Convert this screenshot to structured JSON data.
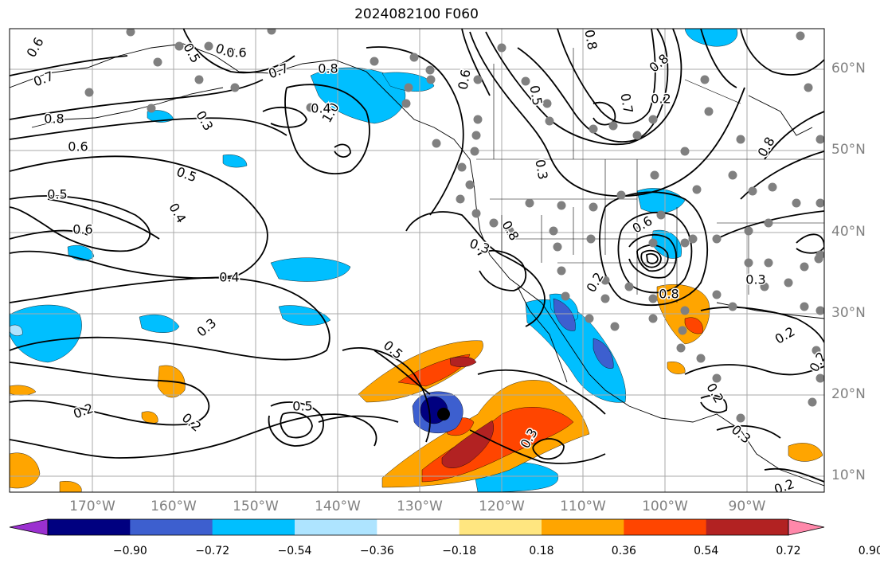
{
  "title": "2024082100 F060",
  "lat_labels": [
    "60°N",
    "50°N",
    "40°N",
    "30°N",
    "20°N",
    "10°N"
  ],
  "lon_labels": [
    "170°W",
    "160°W",
    "150°W",
    "140°W",
    "130°W",
    "120°W",
    "110°W",
    "100°W",
    "90°W"
  ],
  "contour_labels": [
    "0.6",
    "0.7",
    "0.8",
    "0.6",
    "0.5",
    "0.6",
    "0.4",
    "0.5",
    "0.4",
    "0.3",
    "0.2",
    "0.2",
    "0.5",
    "0.5",
    "0.6",
    "0.7",
    "0.8",
    "1.0",
    "0.3",
    "0.4",
    "0.5",
    "0.8",
    "0.7",
    "0.8",
    "0.6",
    "0.3",
    "0.6",
    "0.3",
    "0.8",
    "0.2",
    "0.2",
    "0.8",
    "0.3",
    "0.2",
    "0.2",
    "0.3",
    "0.2",
    "0.2",
    "0.5",
    "0.8",
    "0.3",
    "0.5"
  ],
  "colorbar": {
    "ticks": [
      "−0.90",
      "−0.72",
      "−0.54",
      "−0.36",
      "−0.18",
      "0.18",
      "0.36",
      "0.54",
      "0.72",
      "0.90"
    ],
    "colors": [
      "#9b30d0",
      "#000080",
      "#3d5fcf",
      "#00bfff",
      "#aee4ff",
      "#ffffff",
      "#ffe680",
      "#ffa500",
      "#ff4500",
      "#b22222",
      "#ff88aa"
    ]
  },
  "colors": {
    "blue_shading": "#00bfff",
    "light_blue_shading": "#aee4ff",
    "dark_blue_shading": "#3d5fcf",
    "orange_shading": "#ffa500",
    "red_orange_shading": "#ff4500",
    "dark_red_shading": "#b22222",
    "station_dot": "#808080",
    "grid": "#aaaaaa"
  }
}
